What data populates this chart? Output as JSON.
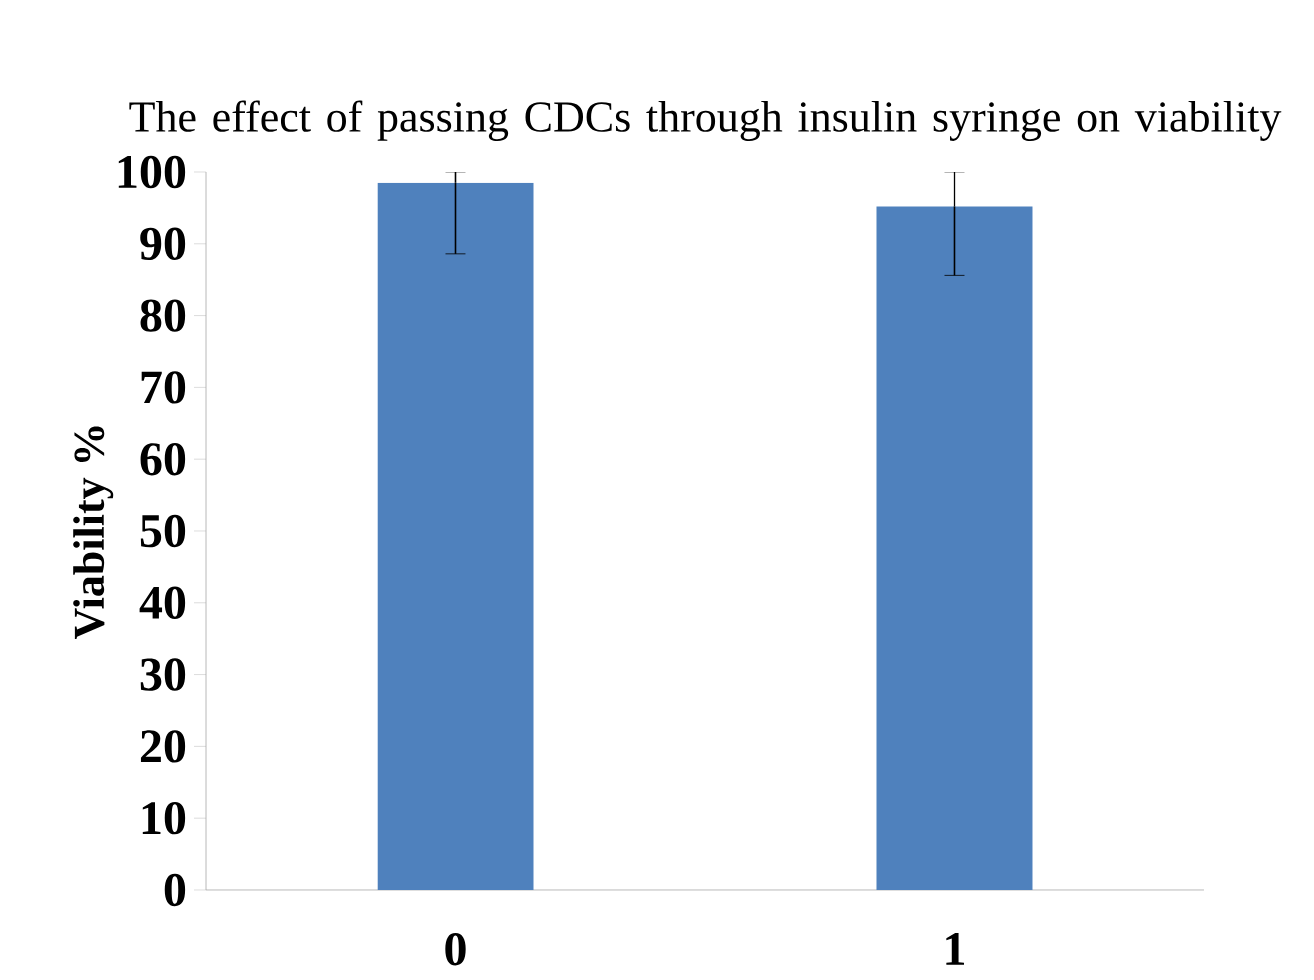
{
  "chart_data": {
    "type": "bar",
    "title": "The effect of passing CDCs through insulin syringe on viability",
    "ylabel": "Viability %",
    "categories": [
      "0",
      "1"
    ],
    "values": [
      98.5,
      95.2
    ],
    "errors": [
      [
        88.6,
        100
      ],
      [
        85.6,
        100
      ]
    ],
    "color": "#4f81bd",
    "ylim": [
      0,
      100
    ],
    "yticks": [
      0,
      10,
      20,
      30,
      40,
      50,
      60,
      70,
      80,
      90,
      100
    ],
    "grid": false
  }
}
